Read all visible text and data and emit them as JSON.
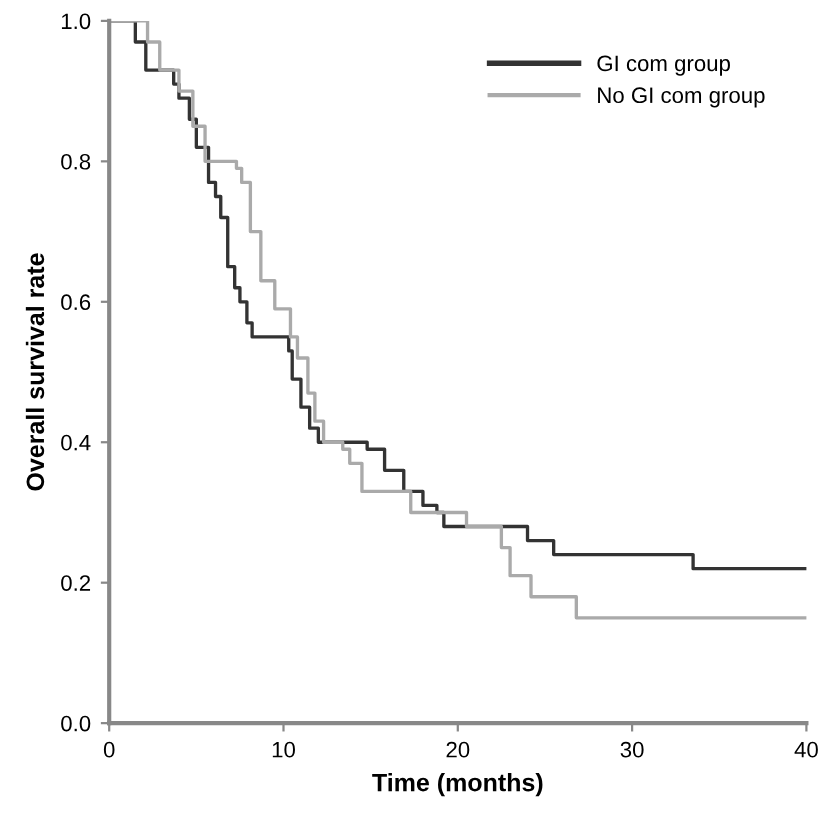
{
  "chart_data": {
    "type": "step",
    "xlabel": "Time (months)",
    "ylabel": "Overall survival rate",
    "xlim": [
      0,
      40
    ],
    "xticks": [
      0,
      10,
      20,
      30,
      40
    ],
    "ylim": [
      0,
      1.0
    ],
    "yticks": [
      {
        "value": 0,
        "label": "0.0"
      },
      {
        "value": 0.2,
        "label": "0.2"
      },
      {
        "value": 0.4,
        "label": "0.4"
      },
      {
        "value": 0.6,
        "label": "0.6"
      },
      {
        "value": 0.8,
        "label": "0.8"
      },
      {
        "value": 1.0,
        "label": "1.0"
      }
    ],
    "grid": false,
    "legend": "top right",
    "marker": "none",
    "line_style": "solid",
    "series": [
      {
        "name": "GI com group",
        "color": "#333333",
        "x": [
          0,
          1.5,
          2.1,
          3.7,
          4.0,
          4.6,
          5.0,
          5.7,
          6.1,
          6.4,
          6.8,
          7.2,
          7.5,
          7.9,
          8.2,
          10.3,
          10.5,
          11.0,
          11.5,
          12.0,
          14.8,
          15.8,
          16.9,
          18.0,
          18.8,
          19.2,
          24.0,
          25.5,
          33.5,
          40
        ],
        "values": [
          1.0,
          0.97,
          0.93,
          0.91,
          0.89,
          0.86,
          0.82,
          0.77,
          0.75,
          0.72,
          0.65,
          0.62,
          0.6,
          0.57,
          0.55,
          0.53,
          0.49,
          0.45,
          0.42,
          0.4,
          0.39,
          0.36,
          0.33,
          0.31,
          0.3,
          0.28,
          0.26,
          0.24,
          0.22,
          0.22
        ]
      },
      {
        "name": "No GI com group",
        "color": "#aaaaaa",
        "x": [
          0,
          2.2,
          2.9,
          4.0,
          4.8,
          5.5,
          7.3,
          7.6,
          8.1,
          8.7,
          9.5,
          10.4,
          10.8,
          11.4,
          11.8,
          12.3,
          13.4,
          13.8,
          14.5,
          17.3,
          20.5,
          22.5,
          23.0,
          24.2,
          26.8,
          40
        ],
        "values": [
          1.0,
          0.97,
          0.93,
          0.9,
          0.85,
          0.8,
          0.79,
          0.77,
          0.7,
          0.63,
          0.59,
          0.55,
          0.52,
          0.47,
          0.43,
          0.4,
          0.39,
          0.37,
          0.33,
          0.3,
          0.28,
          0.25,
          0.21,
          0.18,
          0.15,
          0.15
        ]
      }
    ]
  }
}
